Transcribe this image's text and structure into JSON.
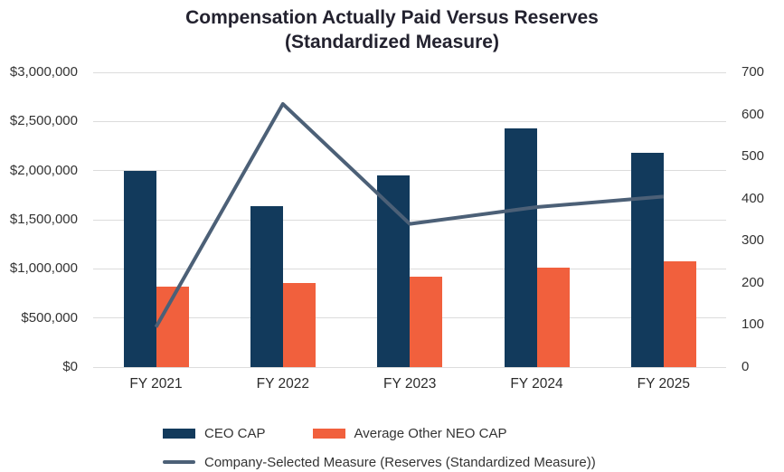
{
  "title": {
    "line1": "Compensation Actually Paid Versus Reserves",
    "line2": "(Standardized Measure)"
  },
  "colors": {
    "ceo_bar": "#123a5c",
    "neo_bar": "#f1603d",
    "line": "#4c6077",
    "grid": "#dcdcdc"
  },
  "chart_data": {
    "type": "bar",
    "subtype": "grouped bars with overlay line, dual y-axes",
    "title": "Compensation Actually Paid Versus Reserves (Standardized Measure)",
    "categories": [
      "FY 2021",
      "FY 2022",
      "FY 2023",
      "FY 2024",
      "FY 2025"
    ],
    "series": [
      {
        "name": "CEO CAP",
        "type": "bar",
        "axis": "left",
        "color": "#123a5c",
        "values": [
          2000000,
          1640000,
          1950000,
          2430000,
          2180000
        ]
      },
      {
        "name": "Average Other NEO CAP",
        "type": "bar",
        "axis": "left",
        "color": "#f1603d",
        "values": [
          820000,
          860000,
          920000,
          1010000,
          1080000
        ]
      },
      {
        "name": "Company-Selected Measure (Reserves (Standardized Measure))",
        "type": "line",
        "axis": "right",
        "color": "#4c6077",
        "values": [
          95,
          625,
          340,
          380,
          405
        ]
      }
    ],
    "left_axis": {
      "min": 0,
      "max": 3000000,
      "tick_labels": [
        "$3,000,000",
        "$2,500,000",
        "$2,000,000",
        "$1,500,000",
        "$1,000,000",
        "$500,000",
        "$0"
      ]
    },
    "right_axis": {
      "min": 0,
      "max": 700,
      "tick_labels": [
        "700",
        "600",
        "500",
        "400",
        "300",
        "200",
        "100",
        "0"
      ]
    },
    "grid": true,
    "legend_position": "bottom"
  },
  "legend": {
    "ceo_label": "CEO CAP",
    "neo_label": "Average Other NEO CAP",
    "line_label": "Company-Selected Measure (Reserves (Standardized Measure))"
  }
}
